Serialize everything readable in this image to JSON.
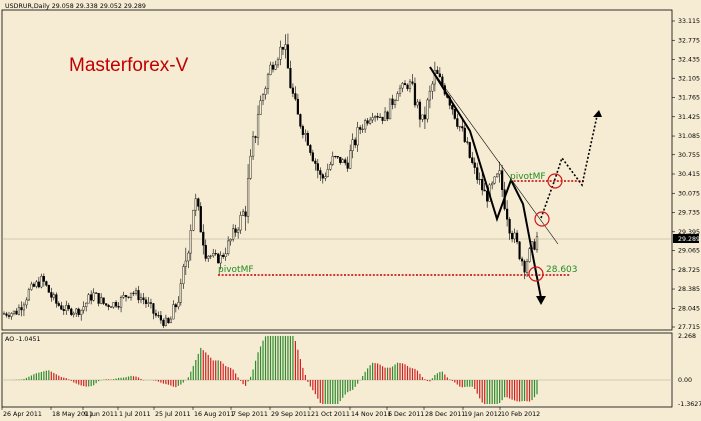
{
  "symbol_header": "USDRUR,Daily  29.058 29.338 29.052 29.289",
  "watermark": "Masterforex-V",
  "current_price": "29.289",
  "annotations": {
    "pivot_left": "pivotMF",
    "pivot_right": "pivotMF",
    "level_value": "28.603"
  },
  "ao_label": "AO -1.0451",
  "colors": {
    "background": "#f6ecd4",
    "candle": "#000000",
    "pivot_line": "#c00000",
    "watermark": "#c00000",
    "annotation_text": "#228b22",
    "ao_up": "#2e8b2e",
    "ao_down": "#d02020",
    "marker_circle": "#d01818"
  },
  "chart_data": [
    {
      "type": "candlestick",
      "title": "USDRUR,Daily",
      "ohlc_last": {
        "open": 29.058,
        "high": 29.338,
        "low": 29.052,
        "close": 29.289
      },
      "y_ticks": [
        "33.115",
        "32.775",
        "32.435",
        "32.105",
        "31.765",
        "31.425",
        "31.085",
        "30.755",
        "30.415",
        "30.075",
        "29.735",
        "29.395",
        "29.065",
        "28.725",
        "28.385",
        "28.045",
        "27.715"
      ],
      "ylim": [
        27.715,
        33.2
      ],
      "x_ticks": [
        "26 Apr 2011",
        "18 May 2011",
        "9 Jun 2011",
        "1 Jul 2011",
        "25 Jul 2011",
        "16 Aug 2011",
        "7 Sep 2011",
        "29 Sep 2011",
        "21 Oct 2011",
        "14 Nov 2011",
        "6 Dec 2011",
        "28 Dec 2011",
        "19 Jan 2012",
        "10 Feb 2012"
      ],
      "pivot_levels": [
        28.66,
        30.25
      ],
      "level_label": "28.603",
      "price_path": [
        [
          "26 Apr 2011",
          27.95
        ],
        [
          "5 May 2011",
          27.98
        ],
        [
          "12 May 2011",
          28.35
        ],
        [
          "18 May 2011",
          28.55
        ],
        [
          "26 May 2011",
          28.15
        ],
        [
          "3 Jun 2011",
          28.0
        ],
        [
          "9 Jun 2011",
          28.0
        ],
        [
          "17 Jun 2011",
          28.3
        ],
        [
          "24 Jun 2011",
          28.1
        ],
        [
          "1 Jul 2011",
          28.15
        ],
        [
          "11 Jul 2011",
          28.35
        ],
        [
          "18 Jul 2011",
          28.2
        ],
        [
          "25 Jul 2011",
          27.9
        ],
        [
          "1 Aug 2011",
          27.75
        ],
        [
          "8 Aug 2011",
          28.4
        ],
        [
          "12 Aug 2011",
          30.0
        ],
        [
          "16 Aug 2011",
          29.0
        ],
        [
          "26 Aug 2011",
          28.9
        ],
        [
          "1 Sep 2011",
          29.3
        ],
        [
          "7 Sep 2011",
          29.8
        ],
        [
          "14 Sep 2011",
          31.5
        ],
        [
          "21 Sep 2011",
          32.3
        ],
        [
          "29 Sep 2011",
          32.7
        ],
        [
          "7 Oct 2011",
          31.5
        ],
        [
          "14 Oct 2011",
          31.0
        ],
        [
          "21 Oct 2011",
          30.3
        ],
        [
          "31 Oct 2011",
          30.7
        ],
        [
          "7 Nov 2011",
          30.6
        ],
        [
          "14 Nov 2011",
          31.2
        ],
        [
          "22 Nov 2011",
          31.5
        ],
        [
          "29 Nov 2011",
          31.4
        ],
        [
          "6 Dec 2011",
          31.9
        ],
        [
          "14 Dec 2011",
          32.0
        ],
        [
          "20 Dec 2011",
          31.3
        ],
        [
          "28 Dec 2011",
          32.2
        ],
        [
          "5 Jan 2012",
          31.8
        ],
        [
          "12 Jan 2012",
          31.2
        ],
        [
          "19 Jan 2012",
          30.5
        ],
        [
          "26 Jan 2012",
          30.0
        ],
        [
          "2 Feb 2012",
          30.4
        ],
        [
          "10 Feb 2012",
          29.4
        ],
        [
          "17 Feb 2012",
          28.8
        ],
        [
          "22 Feb 2012",
          29.29
        ]
      ]
    },
    {
      "type": "bar",
      "title": "AO -1.0451",
      "series_name": "AO",
      "last_value": -1.0451,
      "y_ticks": [
        "2.268",
        "0.00",
        "-1.3627"
      ],
      "ylim": [
        -1.3627,
        2.268
      ]
    }
  ]
}
